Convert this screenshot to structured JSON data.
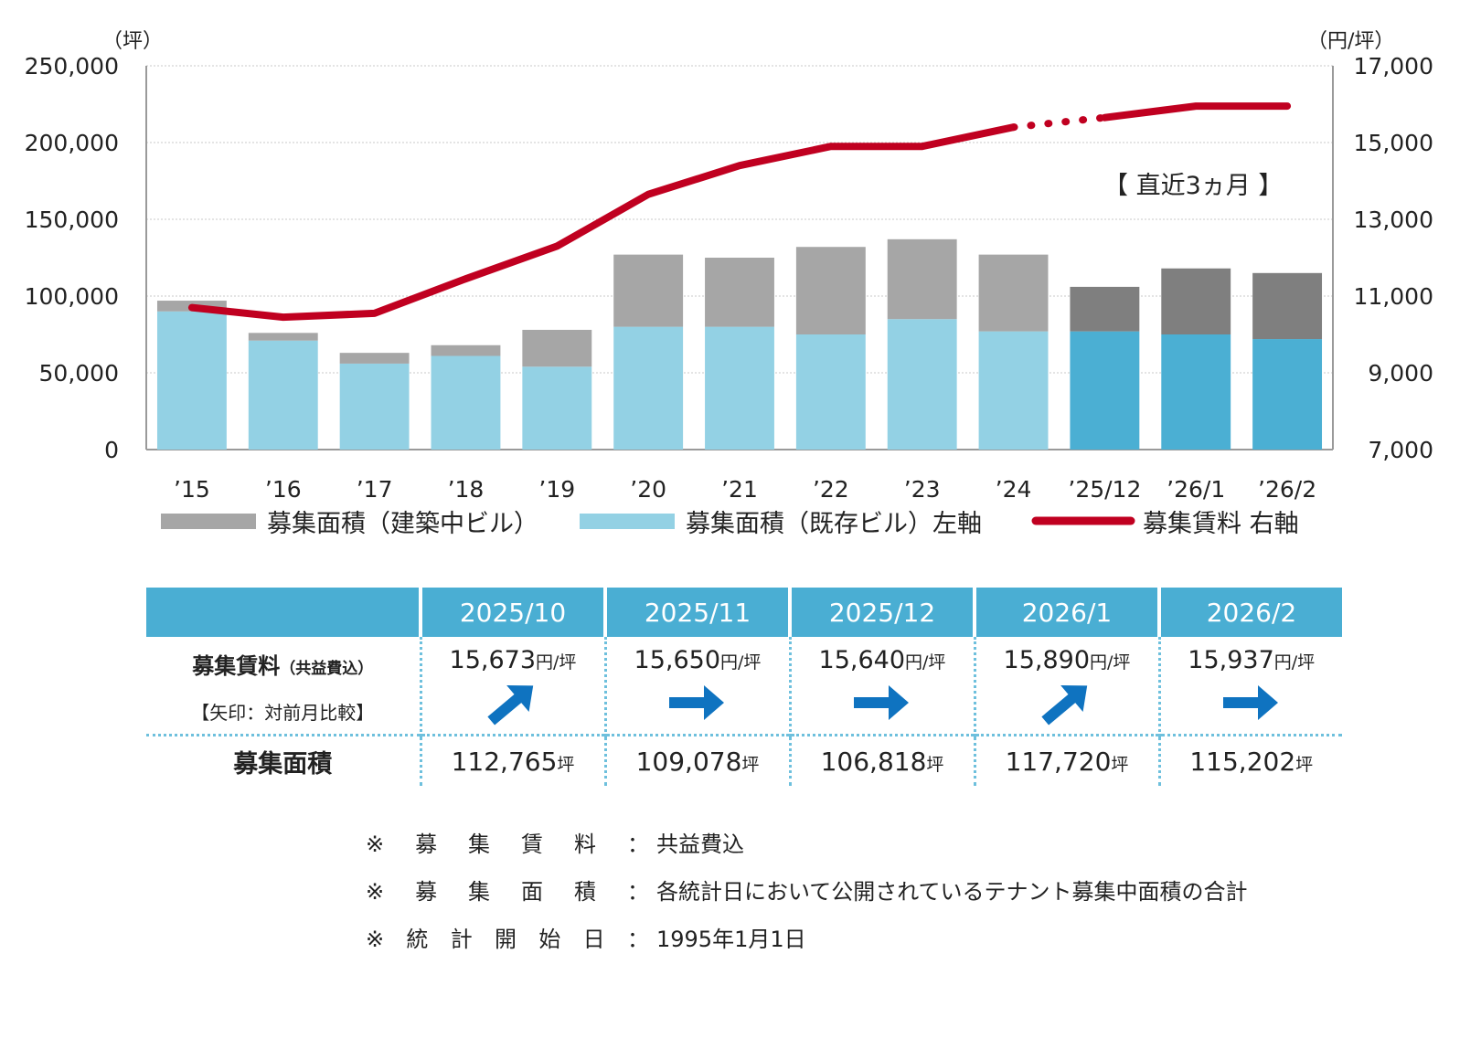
{
  "chart_data": {
    "type": "bar+line",
    "left_axis_unit": "（坪）",
    "right_axis_unit": "（円/坪）",
    "ylim_left": [
      0,
      250000
    ],
    "ylim_right": [
      7000,
      17000
    ],
    "left_ticks": [
      "250,000",
      "200,000",
      "150,000",
      "100,000",
      "50,000",
      "0"
    ],
    "right_ticks": [
      "17,000",
      "15,000",
      "13,000",
      "11,000",
      "9,000",
      "7,000"
    ],
    "categories": [
      "’15",
      "’16",
      "’17",
      "’18",
      "’19",
      "’20",
      "’21",
      "’22",
      "’23",
      "’24",
      "’25/12",
      "’26/1",
      "’26/2"
    ],
    "series": [
      {
        "name": "募集面積（既存ビル）左軸",
        "axis": "left",
        "values": [
          90000,
          71000,
          56000,
          61000,
          54000,
          80000,
          80000,
          75000,
          85000,
          77000,
          77000,
          75000,
          72000
        ]
      },
      {
        "name": "募集面積（建築中ビル）",
        "axis": "left",
        "values": [
          7000,
          5000,
          7000,
          7000,
          24000,
          47000,
          45000,
          57000,
          52000,
          50000,
          29000,
          43000,
          43000
        ]
      },
      {
        "name": "募集賃料 右軸",
        "axis": "right",
        "values": [
          10700,
          10450,
          10550,
          11450,
          12300,
          13650,
          14400,
          14900,
          14900,
          15400,
          15650,
          15950,
          15950
        ]
      }
    ],
    "annotation": "【 直近3ヵ月 】",
    "legend": [
      "募集面積（建築中ビル）",
      "募集面積（既存ビル）左軸",
      "募集賃料 右軸"
    ],
    "colors": {
      "existing": "#93d1e4",
      "construction": "#a6a6a6",
      "existing_recent": "#4bafd3",
      "construction_recent": "#7f7f7f",
      "rent": "#c00020"
    }
  },
  "legend": {
    "construction": "募集面積（建築中ビル）",
    "existing": "募集面積（既存ビル）左軸",
    "rent": "募集賃料 右軸"
  },
  "table": {
    "months": [
      "2025/10",
      "2025/11",
      "2025/12",
      "2026/1",
      "2026/2"
    ],
    "rent_label": "募集賃料",
    "rent_label_sub": "（共益費込）",
    "arrow_note": "【矢印：対前月比較】",
    "rents": [
      "15,673",
      "15,650",
      "15,640",
      "15,890",
      "15,937"
    ],
    "rent_unit": "円/坪",
    "arrows": [
      "up",
      "flat",
      "flat",
      "up",
      "flat"
    ],
    "area_label": "募集面積",
    "areas": [
      "112,765",
      "109,078",
      "106,818",
      "117,720",
      "115,202"
    ],
    "area_unit": "坪"
  },
  "notes": [
    {
      "key": [
        "※",
        "募",
        "集",
        "賃",
        "料"
      ],
      "value": "共益費込"
    },
    {
      "key": [
        "※",
        "募",
        "集",
        "面",
        "積"
      ],
      "value": "各統計日において公開されているテナント募集中面積の合計"
    },
    {
      "key": [
        "※",
        "統",
        "計",
        "開",
        "始",
        "日"
      ],
      "value": "1995年1月1日"
    }
  ],
  "note_colon": "："
}
